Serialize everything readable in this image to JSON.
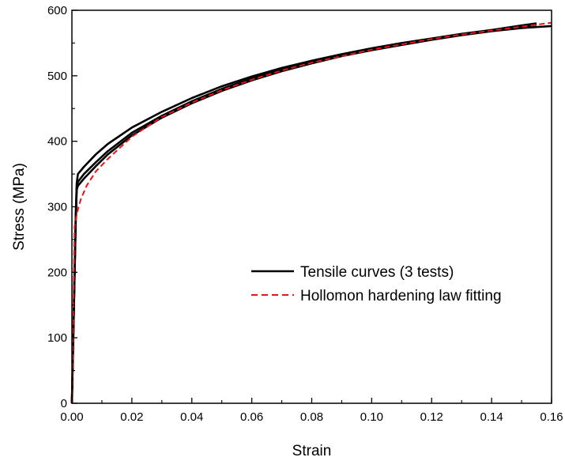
{
  "chart_data": {
    "type": "line",
    "xlabel": "Strain",
    "ylabel": "Stress (MPa)",
    "xlim": [
      0,
      0.16
    ],
    "ylim": [
      0,
      600
    ],
    "x_ticks": [
      0.0,
      0.02,
      0.04,
      0.06,
      0.08,
      0.1,
      0.12,
      0.14,
      0.16
    ],
    "x_tick_labels": [
      "0.00",
      "0.02",
      "0.04",
      "0.06",
      "0.08",
      "0.10",
      "0.12",
      "0.14",
      "0.16"
    ],
    "y_ticks": [
      0,
      100,
      200,
      300,
      400,
      500,
      600
    ],
    "y_tick_labels": [
      "0",
      "100",
      "200",
      "300",
      "400",
      "500",
      "600"
    ],
    "grid": false,
    "legend_position": "center-right",
    "legend": [
      {
        "label": "Tensile curves (3 tests)",
        "color": "#000000",
        "style": "solid"
      },
      {
        "label": "Hollomon hardening law fitting",
        "color": "#e8141a",
        "style": "dashed"
      }
    ],
    "series": [
      {
        "color": "#000000",
        "style": "solid",
        "x": [
          0,
          0.0013,
          0.0016,
          0.002,
          0.004,
          0.008,
          0.012,
          0.02,
          0.03,
          0.04,
          0.05,
          0.06,
          0.07,
          0.08,
          0.09,
          0.1,
          0.11,
          0.12,
          0.13,
          0.14,
          0.15,
          0.155
        ],
        "y": [
          0,
          290,
          336,
          350,
          361,
          380,
          396,
          421,
          445,
          466,
          484,
          499,
          512,
          523,
          533,
          542,
          550,
          557,
          564,
          570,
          577,
          580
        ]
      },
      {
        "color": "#000000",
        "style": "solid",
        "x": [
          0,
          0.0013,
          0.0016,
          0.002,
          0.004,
          0.008,
          0.012,
          0.02,
          0.03,
          0.04,
          0.05,
          0.06,
          0.07,
          0.08,
          0.09,
          0.1,
          0.11,
          0.12,
          0.13,
          0.14,
          0.15,
          0.16
        ],
        "y": [
          0,
          280,
          326,
          332,
          343,
          362,
          380,
          409,
          436,
          458,
          477,
          493,
          507,
          519,
          530,
          539,
          547,
          555,
          562,
          568,
          573,
          576
        ]
      },
      {
        "color": "#000000",
        "style": "solid",
        "x": [
          0,
          0.0013,
          0.0016,
          0.002,
          0.004,
          0.008,
          0.012,
          0.02,
          0.03,
          0.04,
          0.05,
          0.06,
          0.07,
          0.08,
          0.09,
          0.1,
          0.11,
          0.12,
          0.13,
          0.14,
          0.15,
          0.155
        ],
        "y": [
          0,
          285,
          330,
          338,
          350,
          368,
          385,
          413,
          439,
          461,
          480,
          496,
          509,
          521,
          531,
          540,
          548,
          556,
          563,
          569,
          575,
          578
        ]
      },
      {
        "color": "#e8141a",
        "style": "dashed",
        "x": [
          0,
          0.0009,
          0.0015,
          0.002,
          0.003,
          0.005,
          0.008,
          0.012,
          0.02,
          0.03,
          0.04,
          0.05,
          0.06,
          0.07,
          0.08,
          0.09,
          0.1,
          0.11,
          0.12,
          0.13,
          0.14,
          0.15,
          0.16
        ],
        "y": [
          0,
          270,
          285,
          296,
          312,
          333,
          354,
          373,
          407,
          437,
          459,
          478,
          494,
          508,
          520,
          530,
          540,
          548,
          556,
          563,
          569,
          575,
          581
        ]
      }
    ]
  }
}
